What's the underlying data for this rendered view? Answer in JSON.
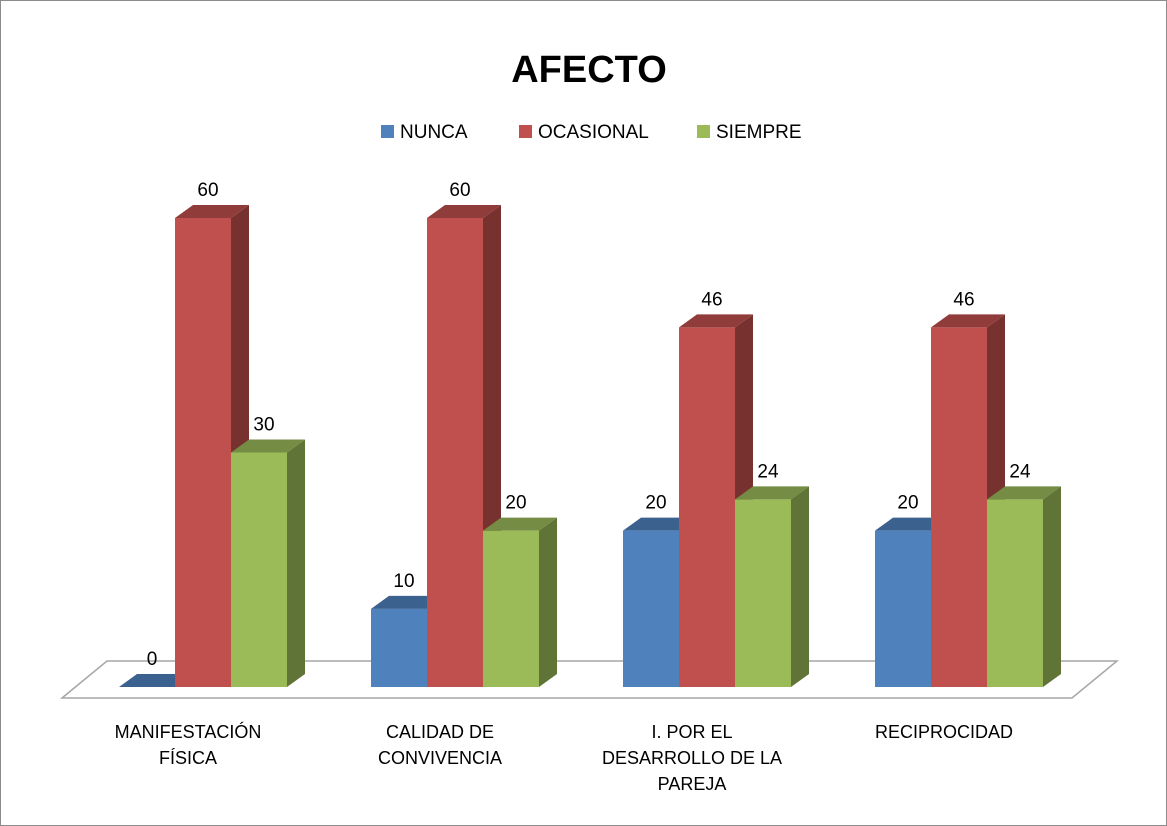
{
  "chart_data": {
    "type": "bar3d",
    "title": "AFECTO",
    "categories": [
      "MANIFESTACIÓN FÍSICA",
      "CALIDAD DE CONVIVENCIA",
      "I. POR EL DESARROLLO DE LA PAREJA",
      "RECIPROCIDAD"
    ],
    "series": [
      {
        "name": "NUNCA",
        "color": "#4f81bd",
        "values": [
          0,
          10,
          20,
          20
        ]
      },
      {
        "name": "OCASIONAL",
        "color": "#c0504d",
        "values": [
          60,
          60,
          46,
          46
        ]
      },
      {
        "name": "SIEMPRE",
        "color": "#9bbb59",
        "values": [
          30,
          20,
          24,
          24
        ]
      }
    ],
    "legend": "top"
  }
}
